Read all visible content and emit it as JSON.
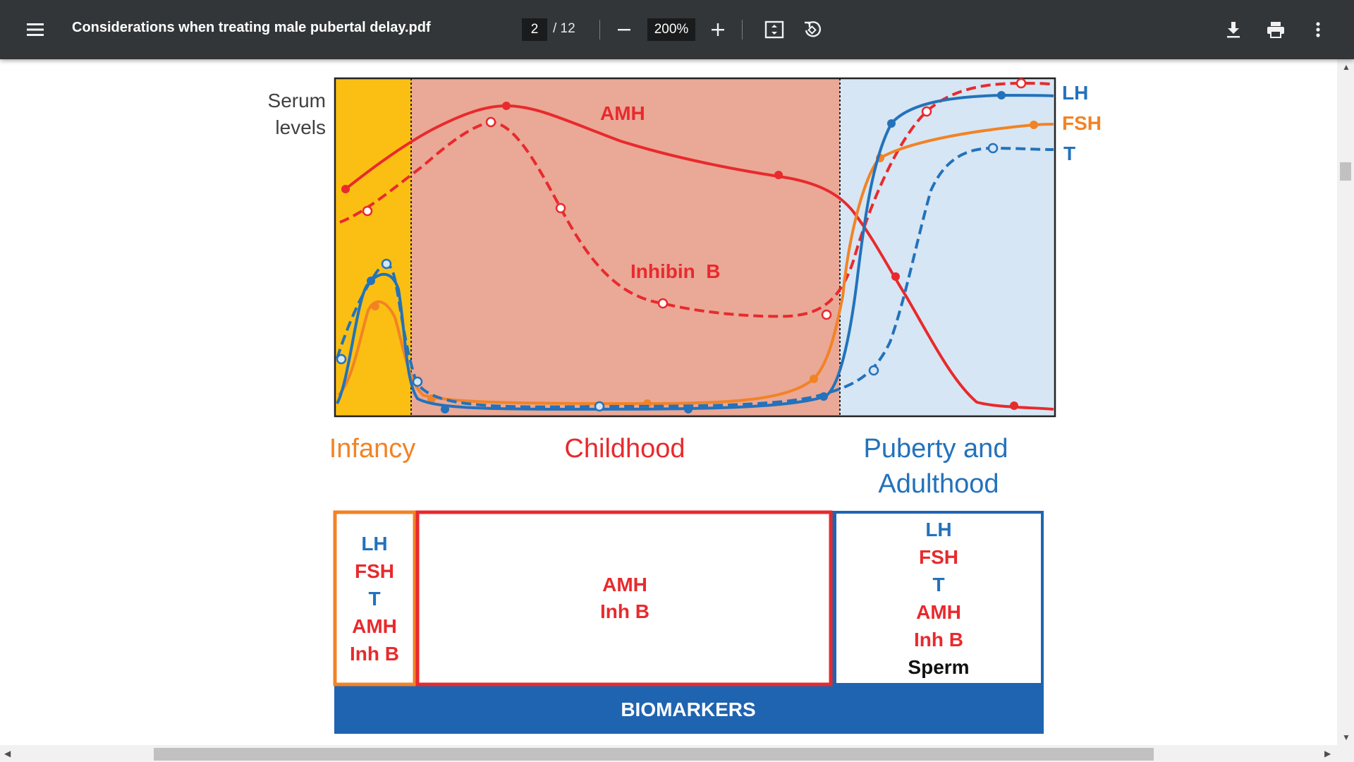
{
  "toolbar": {
    "file_title": "Considerations when treating male pubertal delay.pdf",
    "current_page": "2",
    "total_pages": "/ 12",
    "zoom": "200%"
  },
  "icons": [
    "menu-icon",
    "zoom-out-icon",
    "zoom-in-icon",
    "fit-page-icon",
    "rotate-icon",
    "download-icon",
    "print-icon",
    "more-vert-icon"
  ],
  "colors": {
    "toolbar_bg": "#323639",
    "infancy_bg": "#fbbf13",
    "childhood_bg": "#eaa897",
    "puberty_bg": "#d6e6f4",
    "red": "#e82a2d",
    "orange": "#f28325",
    "blue": "#2372bb",
    "dark_blue": "#1f64b1"
  },
  "figure": {
    "y_axis_label_line1": "Serum",
    "y_axis_label_line2": "levels",
    "curve_labels": {
      "amh": "AMH",
      "inhibin": "Inhibin  B",
      "lh": "LH",
      "fsh": "FSH",
      "t": "T"
    },
    "phases": {
      "infancy": "Infancy",
      "childhood": "Childhood",
      "puberty_line1": "Puberty and",
      "puberty_line2": "Adulthood"
    },
    "biomarker_boxes": {
      "infancy": [
        "LH",
        "FSH",
        "T",
        "AMH",
        "Inh B"
      ],
      "childhood": [
        "AMH",
        "Inh B"
      ],
      "puberty": [
        "LH",
        "FSH",
        "T",
        "AMH",
        "Inh B",
        "Sperm"
      ]
    },
    "biomarkers_label": "BIOMARKERS"
  }
}
